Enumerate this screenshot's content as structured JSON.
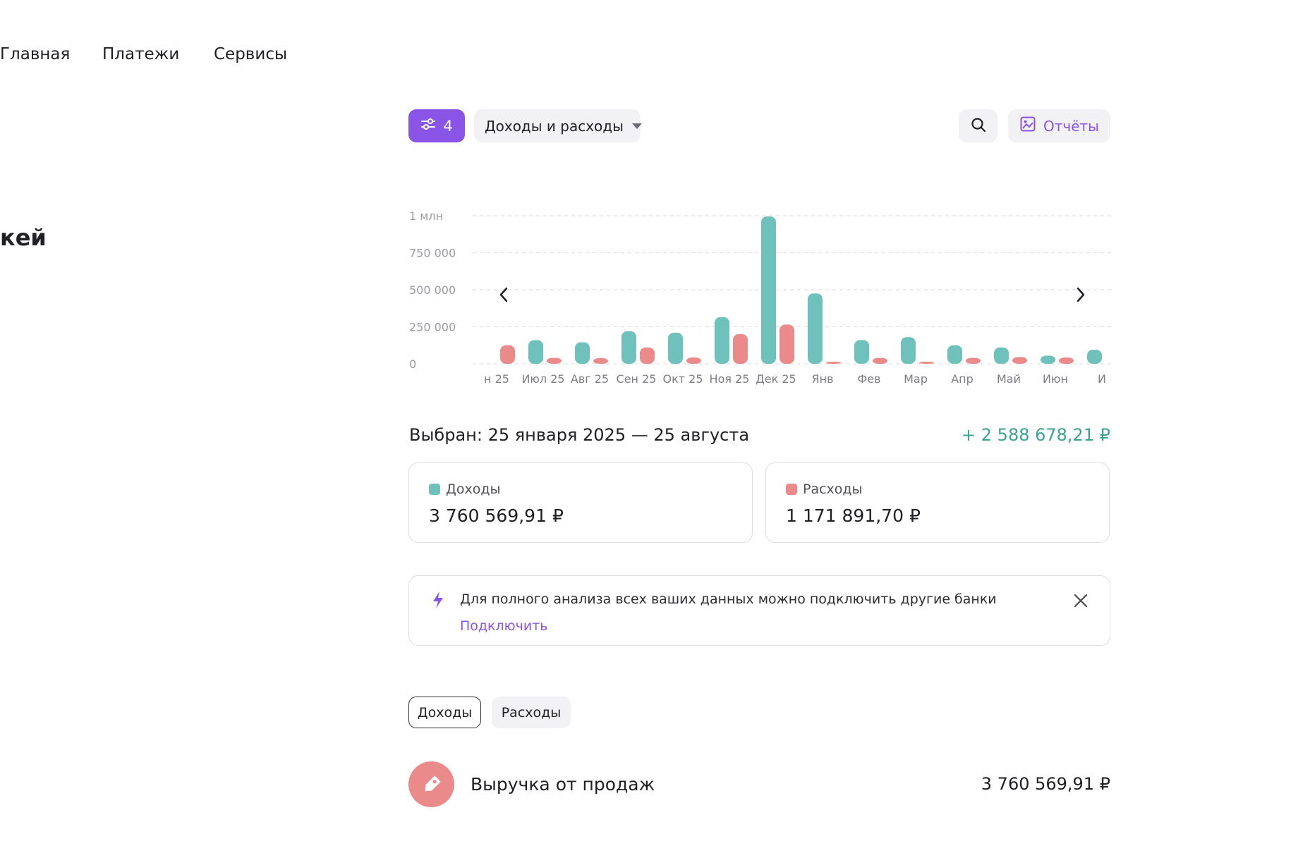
{
  "nav": {
    "items": [
      {
        "label": "Главная"
      },
      {
        "label": "Платежи"
      },
      {
        "label": "Сервисы"
      }
    ]
  },
  "page": {
    "title_fragment": "кей"
  },
  "toolbar": {
    "filter_count": "4",
    "filter_icon": "sliders-icon",
    "dropdown_value": "Доходы и расходы",
    "search_icon": "search-icon",
    "reports_label": "Отчёты",
    "reports_icon": "image-report-icon"
  },
  "colors": {
    "accent": "#8a55e6",
    "income": "#6fc1bb",
    "expense": "#ea8a8a",
    "positive_text": "#3aa392"
  },
  "chart_data": {
    "type": "bar",
    "y_tick_labels": [
      "0",
      "250 000",
      "500 000",
      "750 000",
      "1 млн"
    ],
    "y_tick_values": [
      0,
      250000,
      500000,
      750000,
      1000000
    ],
    "ylim": [
      0,
      1000000
    ],
    "grid": true,
    "categories": [
      "н 25",
      "Июл 25",
      "Авг 25",
      "Сен 25",
      "Окт 25",
      "Ноя 25",
      "Дек 25",
      "Янв",
      "Фев",
      "Мар",
      "Апр",
      "Май",
      "Июн",
      "И"
    ],
    "series": [
      {
        "name": "Доходы",
        "color": "#6fc1bb",
        "values": [
          0,
          160000,
          145000,
          220000,
          210000,
          315000,
          995000,
          475000,
          160000,
          180000,
          125000,
          110000,
          55000,
          95000
        ]
      },
      {
        "name": "Расходы",
        "color": "#ea8a8a",
        "values": [
          125000,
          40000,
          38000,
          110000,
          42000,
          200000,
          265000,
          8000,
          40000,
          6000,
          40000,
          45000,
          42000,
          0
        ]
      }
    ],
    "nav_prev_icon": "chevron-left-icon",
    "nav_next_icon": "chevron-right-icon"
  },
  "summary": {
    "period_label": "Выбран: 25 января 2025 — 25 августа",
    "net_total": "+ 2 588 678,21 ₽",
    "income_label": "Доходы",
    "income_value": "3 760 569,91 ₽",
    "expense_label": "Расходы",
    "expense_value": "1 171 891,70 ₽"
  },
  "banner": {
    "icon": "lightning-icon",
    "message": "Для полного анализа всех ваших данных можно подключить другие банки",
    "link_label": "Подключить",
    "close_icon": "close-icon"
  },
  "tabs": [
    {
      "label": "Доходы",
      "active": true
    },
    {
      "label": "Расходы",
      "active": false
    }
  ],
  "categories_list": [
    {
      "icon": "price-tag-icon",
      "name": "Выручка от продаж",
      "amount": "3 760 569,91 ₽"
    }
  ]
}
